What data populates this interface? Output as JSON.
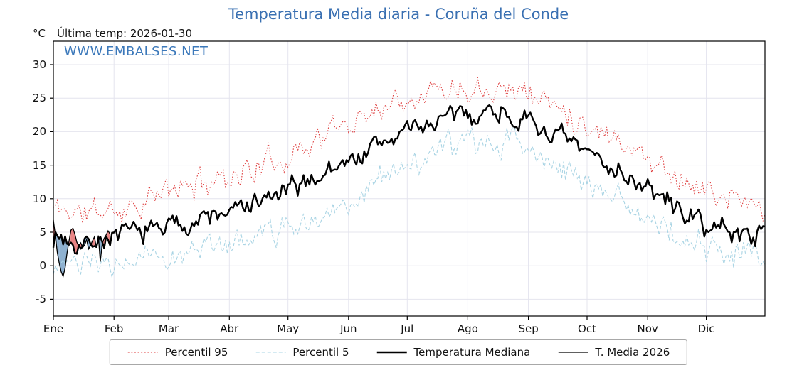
{
  "header": {
    "unit": "°C",
    "last_temp": "Última temp: 2026-01-30"
  },
  "watermark": "WWW.EMBALSES.NET",
  "legend": [
    {
      "label": "Percentil 95",
      "color": "#de3a3a",
      "style": "dotted",
      "width": 1.1
    },
    {
      "label": "Percentil 5",
      "color": "#a9d4e4",
      "style": "dashed",
      "width": 1.1
    },
    {
      "label": "Temperatura Mediana",
      "color": "#000000",
      "style": "solid",
      "width": 2.4
    },
    {
      "label": "T. Media 2026",
      "color": "#000000",
      "style": "solid",
      "width": 1.3
    }
  ],
  "chart_data": {
    "type": "line",
    "title": "Temperatura Media diaria - Coruña del Conde",
    "ylabel": "°C",
    "xlabel": "",
    "ylim": [
      -7.5,
      33.5
    ],
    "grid": true,
    "legend_position": "bottom",
    "y_ticks": [
      -5,
      0,
      5,
      10,
      15,
      20,
      25,
      30
    ],
    "x_tick_labels": [
      "Ene",
      "Feb",
      "Mar",
      "Abr",
      "May",
      "Jun",
      "Jul",
      "Ago",
      "Sep",
      "Oct",
      "Nov",
      "Dic"
    ],
    "month_start_days": [
      0,
      31,
      59,
      90,
      120,
      151,
      181,
      212,
      243,
      273,
      304,
      334
    ],
    "days_in_year": 365,
    "anchor_days": [
      0,
      15,
      31,
      46,
      59,
      74,
      90,
      105,
      120,
      135,
      151,
      166,
      181,
      196,
      212,
      227,
      243,
      258,
      273,
      288,
      304,
      319,
      334,
      349,
      364
    ],
    "series": [
      {
        "name": "Percentil 95",
        "color": "#de3a3a",
        "style": "dotted",
        "anchor_values": [
          8.6,
          7.8,
          8.3,
          9.6,
          11.0,
          12.3,
          13.6,
          14.6,
          16.6,
          19.0,
          21.2,
          23.8,
          25.6,
          26.6,
          26.8,
          27.3,
          25.8,
          23.8,
          21.2,
          19.4,
          16.0,
          13.6,
          11.0,
          9.6,
          8.7
        ]
      },
      {
        "name": "Percentil 5",
        "color": "#a9d4e4",
        "style": "dashed",
        "anchor_values": [
          0.6,
          -0.4,
          0.2,
          1.0,
          2.0,
          2.6,
          3.4,
          4.2,
          5.4,
          7.4,
          9.8,
          12.8,
          15.0,
          16.8,
          18.0,
          19.0,
          17.2,
          15.4,
          12.6,
          10.4,
          7.0,
          4.8,
          2.6,
          1.4,
          0.6
        ]
      },
      {
        "name": "Temperatura Mediana",
        "color": "#000000",
        "style": "solid",
        "anchor_values": [
          4.4,
          3.4,
          4.4,
          5.0,
          6.0,
          6.8,
          8.0,
          9.4,
          11.0,
          13.4,
          15.6,
          18.0,
          20.2,
          21.6,
          22.6,
          23.4,
          21.2,
          19.4,
          16.6,
          14.8,
          11.2,
          8.8,
          5.8,
          5.0,
          4.6
        ]
      }
    ],
    "actual_2026": {
      "name": "T. Media 2026",
      "color": "#000000",
      "fill_above_color": "#e57070",
      "fill_below_color": "#7ba3c8",
      "days": [
        0,
        1,
        2,
        3,
        4,
        5,
        6,
        7,
        8,
        9,
        10,
        11,
        12,
        13,
        14,
        15,
        16,
        17,
        18,
        19,
        20,
        21,
        22,
        23,
        24,
        25,
        26,
        27,
        28,
        29
      ],
      "values": [
        6.8,
        4.6,
        2.0,
        0.4,
        -0.9,
        -1.6,
        -0.3,
        1.9,
        3.7,
        5.3,
        5.6,
        4.7,
        3.5,
        2.9,
        3.4,
        2.7,
        3.1,
        3.9,
        2.5,
        3.0,
        3.7,
        4.3,
        2.7,
        4.5,
        0.6,
        3.3,
        4.1,
        4.6,
        5.2,
        4.7
      ]
    }
  }
}
